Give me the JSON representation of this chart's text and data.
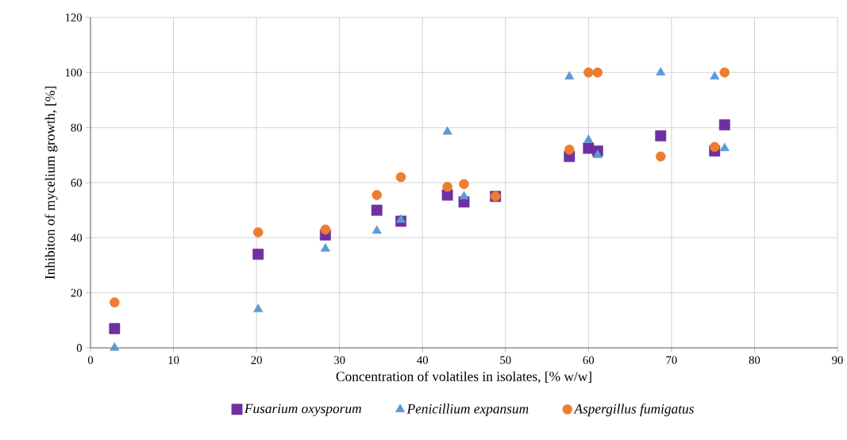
{
  "chart_data": {
    "type": "scatter",
    "xlabel": "Concentration of volatiles in isolates, [% w/w]",
    "ylabel": "Inhibiton of mycelium growth, [%]",
    "x": [
      2.9,
      20.2,
      28.3,
      34.5,
      37.4,
      43,
      45,
      48.8,
      57.7,
      60,
      61.1,
      68.7,
      75.2,
      76.4
    ],
    "series": [
      {
        "name": "Fusarium oxysporum",
        "color": "#7030a0",
        "marker": "square",
        "values": [
          7,
          34,
          41,
          50,
          46,
          55.5,
          53,
          55,
          69.5,
          72.5,
          71.5,
          77,
          71.5,
          81
        ]
      },
      {
        "name": "Penicillium expansum",
        "color": "#5b9bd5",
        "marker": "triangle",
        "values": [
          0,
          14,
          36,
          42.5,
          46.5,
          78.5,
          55,
          null,
          98.5,
          75.5,
          70,
          100,
          98.5,
          72.5
        ]
      },
      {
        "name": "Aspergillus fumigatus",
        "color": "#ed7d31",
        "marker": "circle",
        "values": [
          16.5,
          42,
          43,
          55.5,
          62,
          58.5,
          59.5,
          55,
          72,
          100,
          100,
          69.5,
          73,
          100
        ]
      }
    ],
    "xlim": [
      0,
      90
    ],
    "xticks": [
      0,
      10,
      20,
      30,
      40,
      50,
      60,
      70,
      80,
      90
    ],
    "ylim": [
      0,
      120
    ],
    "yticks": [
      0,
      20,
      40,
      60,
      80,
      100,
      120
    ],
    "grid": true,
    "legend": "bottom"
  }
}
